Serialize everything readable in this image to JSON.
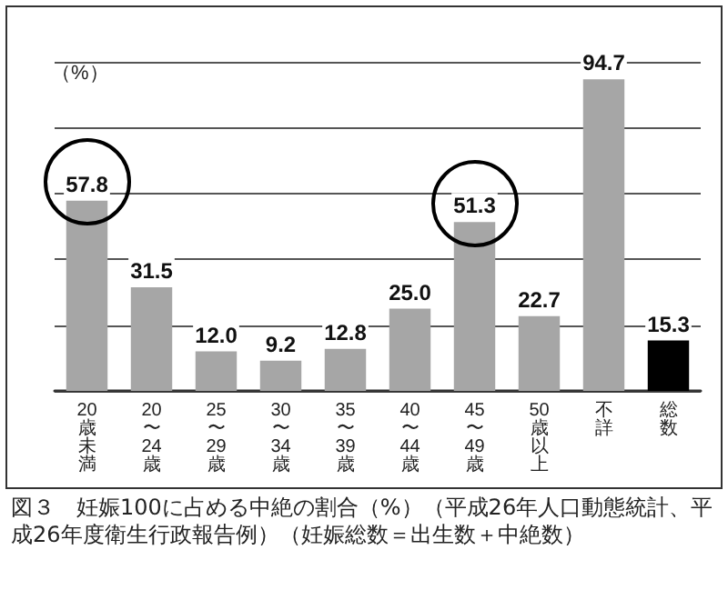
{
  "chart_data": {
    "type": "bar",
    "title": "図３　妊娠100に占める中絶の割合（%）（平成26年人口動態統計、平成26年度衛生行政報告例）（妊娠総数＝出生数＋中絶数）",
    "ylabel": "（%）",
    "categories": [
      "20歳未満",
      "20〜24歳",
      "25〜29歳",
      "30〜34歳",
      "35〜39歳",
      "40〜44歳",
      "45〜49歳",
      "50歳以上",
      "不詳",
      "総数"
    ],
    "values": [
      57.8,
      31.5,
      12.0,
      9.2,
      12.8,
      25.0,
      51.3,
      22.7,
      94.7,
      15.3
    ],
    "colors": [
      "#a6a6a6",
      "#a6a6a6",
      "#a6a6a6",
      "#a6a6a6",
      "#a6a6a6",
      "#a6a6a6",
      "#a6a6a6",
      "#a6a6a6",
      "#a6a6a6",
      "#000000"
    ],
    "ylim": [
      0,
      100
    ],
    "yticks": [
      {
        "value": 0,
        "label": null
      },
      {
        "value": 20,
        "label": null
      },
      {
        "value": 40,
        "label": null
      },
      {
        "value": 60,
        "label": null
      },
      {
        "value": 80,
        "label": null
      },
      {
        "value": 100,
        "label": null
      }
    ],
    "value_labels": [
      "57.8",
      "31.5",
      "12.0",
      "9.2",
      "12.8",
      "25.0",
      "51.3",
      "22.7",
      "94.7",
      "15.3"
    ],
    "grid": "y",
    "tick_labels": "x"
  }
}
